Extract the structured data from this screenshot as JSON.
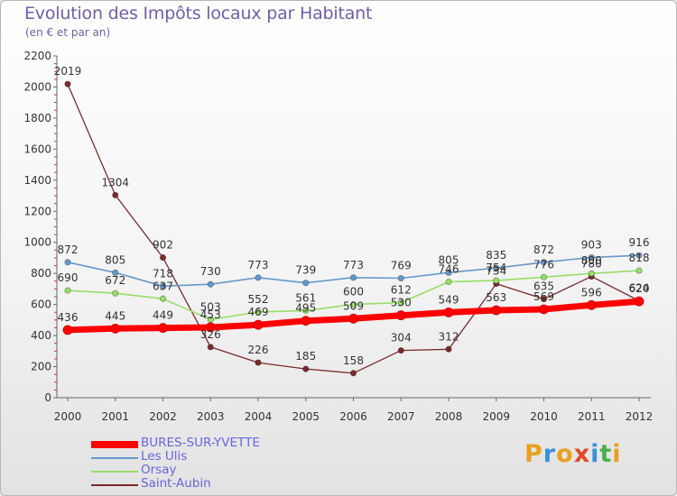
{
  "title": "Evolution des Impôts locaux par Habitant",
  "subtitle": "(en € et par an)",
  "logo": {
    "text": "Proxiti",
    "letters": [
      "P",
      "r",
      "o",
      "x",
      "i",
      "t",
      "i"
    ],
    "colors": [
      "#e8a020",
      "#3a8fd8",
      "#e8a020",
      "#e04a2a",
      "#3a8fd8",
      "#4ab04a",
      "#e8a020"
    ]
  },
  "chart_data": {
    "type": "line",
    "title": "Evolution des Impôts locaux par Habitant",
    "subtitle": "(en € et par an)",
    "xlabel": "",
    "ylabel": "",
    "ylim": [
      0,
      2200
    ],
    "yticks": [
      0,
      200,
      400,
      600,
      800,
      1000,
      1200,
      1400,
      1600,
      1800,
      2000,
      2200
    ],
    "categories": [
      "2000",
      "2001",
      "2002",
      "2003",
      "2004",
      "2005",
      "2006",
      "2007",
      "2008",
      "2009",
      "2010",
      "2011",
      "2012"
    ],
    "series": [
      {
        "name": "Saint-Aubin",
        "color": "#7a2a2a",
        "width": 1.3,
        "marker": 3.2,
        "values": [
          2019,
          1304,
          902,
          326,
          226,
          185,
          158,
          304,
          312,
          734,
          635,
          780,
          624
        ],
        "labels": [
          "2019",
          "1304",
          "902",
          "326",
          "226",
          "185",
          "158",
          "304",
          "312",
          "734",
          "635",
          "780",
          "624"
        ]
      },
      {
        "name": "Orsay",
        "color": "#99dd66",
        "width": 1.6,
        "marker": 3.2,
        "values": [
          690,
          672,
          637,
          503,
          552,
          561,
          600,
          612,
          746,
          754,
          776,
          800,
          818
        ],
        "labels": [
          "690",
          "672",
          "637",
          "503",
          "552",
          "561",
          "600",
          "612",
          "746",
          "754",
          "776",
          "800",
          "818"
        ]
      },
      {
        "name": "Les Ulis",
        "color": "#6699cc",
        "width": 1.6,
        "marker": 3.2,
        "values": [
          872,
          805,
          718,
          730,
          773,
          739,
          773,
          769,
          805,
          835,
          872,
          903,
          916
        ],
        "labels": [
          "872",
          "805",
          "718",
          "730",
          "773",
          "739",
          "773",
          "769",
          "805",
          "835",
          "872",
          "903",
          "916"
        ]
      },
      {
        "name": "BURES-SUR-YVETTE",
        "color": "#ff0000",
        "width": 7,
        "marker": 5,
        "values": [
          436,
          445,
          449,
          453,
          469,
          495,
          509,
          530,
          549,
          563,
          569,
          596,
          620
        ],
        "labels": [
          "436",
          "445",
          "449",
          "453",
          "469",
          "495",
          "509",
          "530",
          "549",
          "563",
          "569",
          "596",
          "620"
        ]
      }
    ],
    "legend": [
      {
        "name": "BURES-SUR-YVETTE",
        "color": "#ff0000"
      },
      {
        "name": "Les Ulis",
        "color": "#6699cc"
      },
      {
        "name": "Orsay",
        "color": "#99dd66"
      },
      {
        "name": "Saint-Aubin",
        "color": "#7a2a2a"
      }
    ],
    "legend_position": "bottom-left",
    "grid": false
  }
}
